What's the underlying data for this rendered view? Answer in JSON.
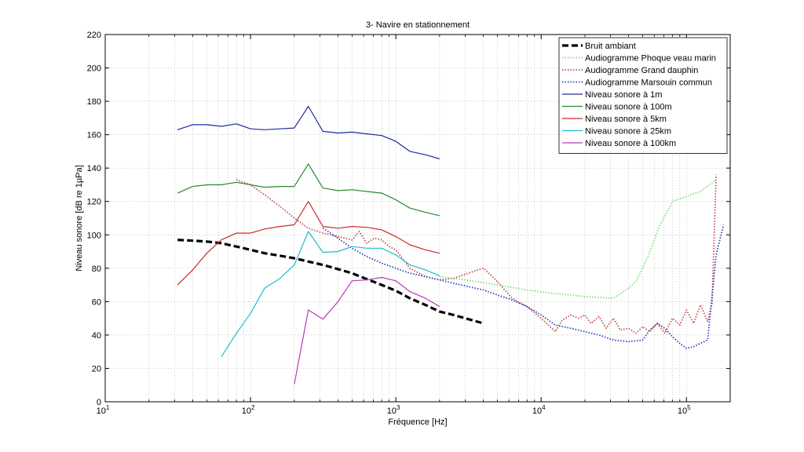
{
  "chart_data": {
    "type": "line",
    "title": "3- Navire en stationnement",
    "xlabel": "Fréquence [Hz]",
    "ylabel": "Niveau sonore [dB re 1µPa]",
    "xscale": "log",
    "xlim": [
      10,
      200000
    ],
    "ylim": [
      0,
      220
    ],
    "yticks": [
      0,
      20,
      40,
      60,
      80,
      100,
      120,
      140,
      160,
      180,
      200,
      220
    ],
    "xticks": [
      {
        "value": 10,
        "base": "10",
        "exp": "1"
      },
      {
        "value": 100,
        "base": "10",
        "exp": "2"
      },
      {
        "value": 1000,
        "base": "10",
        "exp": "3"
      },
      {
        "value": 10000,
        "base": "10",
        "exp": "4"
      },
      {
        "value": 100000,
        "base": "10",
        "exp": "5"
      }
    ],
    "grid": true,
    "legend_position": "top-right",
    "series": [
      {
        "name": "Bruit ambiant",
        "color": "#000000",
        "style": "dashed-bold",
        "x": [
          31.5,
          40,
          50,
          63,
          80,
          100,
          125,
          160,
          200,
          250,
          315,
          400,
          500,
          630,
          800,
          1000,
          1250,
          1600,
          2000,
          2500,
          3150,
          4000
        ],
        "y": [
          97,
          96.5,
          96,
          95,
          93,
          91,
          89,
          87.5,
          86,
          84,
          82,
          79.5,
          77,
          73.5,
          70,
          66.5,
          62,
          58,
          54,
          52,
          49.5,
          47
        ]
      },
      {
        "name": "Audiogramme Phoque veau marin",
        "color": "#7be07b",
        "style": "dotted",
        "x": [
          2000,
          3000,
          5000,
          8000,
          12000,
          16000,
          20000,
          25000,
          31500,
          40000,
          45000,
          55000,
          65000,
          80000,
          100000,
          125000,
          160000
        ],
        "y": [
          75,
          73,
          70,
          67,
          65,
          64,
          63,
          62.5,
          62,
          68,
          72,
          88,
          105,
          120,
          123,
          126,
          133
        ]
      },
      {
        "name": "Audiogramme Grand dauphin",
        "color": "#c0504d",
        "style": "dotted",
        "x": [
          80,
          100,
          125,
          160,
          200,
          250,
          315,
          400,
          450,
          500,
          560,
          630,
          710,
          800,
          900,
          1000,
          1250,
          1600,
          2000,
          2500,
          3150,
          4000,
          5000,
          6300,
          8000,
          10000,
          12500,
          14000,
          16000,
          18000,
          20000,
          22000,
          25000,
          28000,
          31500,
          35000,
          40000,
          45000,
          50000,
          56000,
          63000,
          71000,
          80000,
          90000,
          100000,
          112000,
          125000,
          140000,
          150000,
          160000
        ],
        "y": [
          133,
          130,
          124,
          117,
          110,
          104,
          101,
          99,
          98,
          97,
          102,
          95,
          98,
          97,
          93,
          91,
          80,
          75,
          73,
          74,
          77,
          80,
          72,
          62,
          57,
          50,
          42,
          49,
          52,
          50,
          52,
          47,
          51,
          44,
          50,
          43,
          44,
          41,
          45,
          42,
          47,
          41,
          50,
          46,
          55,
          47,
          58,
          48,
          59,
          136
        ]
      },
      {
        "name": "Audiogramme Marsouin commun",
        "color": "#2f3ec2",
        "style": "dotted",
        "x": [
          315,
          400,
          500,
          630,
          800,
          1000,
          1250,
          1600,
          2000,
          2500,
          3150,
          4000,
          5000,
          6300,
          8000,
          10000,
          12500,
          16000,
          20000,
          25000,
          31500,
          40000,
          50000,
          56000,
          63000,
          71000,
          80000,
          90000,
          100000,
          112000,
          125000,
          140000,
          160000,
          180000
        ],
        "y": [
          104,
          98,
          92,
          87,
          83,
          80,
          77,
          75,
          73,
          71,
          69,
          67,
          64,
          61,
          57,
          52,
          46,
          44,
          42,
          40,
          37,
          36,
          37,
          43,
          47,
          44,
          39,
          35,
          32,
          33,
          35,
          37,
          88,
          106
        ]
      },
      {
        "name": "Niveau sonore à 1m",
        "color": "#1c2c9c",
        "style": "solid",
        "x": [
          31.5,
          40,
          50,
          63,
          80,
          100,
          125,
          160,
          200,
          250,
          315,
          400,
          500,
          630,
          800,
          1000,
          1250,
          1600,
          2000
        ],
        "y": [
          163,
          166,
          166,
          165,
          166.5,
          163.5,
          163,
          163.5,
          164,
          177,
          162,
          161,
          161.5,
          160.5,
          159.5,
          156,
          150,
          148,
          145.5
        ]
      },
      {
        "name": "Niveau sonore à 100m",
        "color": "#2a8a2a",
        "style": "solid",
        "x": [
          31.5,
          40,
          50,
          63,
          80,
          100,
          125,
          160,
          200,
          250,
          315,
          400,
          500,
          630,
          800,
          1000,
          1250,
          1600,
          2000
        ],
        "y": [
          125,
          129,
          130,
          130,
          131.5,
          130,
          128.5,
          129,
          129,
          142.5,
          128,
          126.5,
          127,
          126,
          125,
          121,
          116,
          113.5,
          111.5
        ]
      },
      {
        "name": "Niveau sonore à 5km",
        "color": "#cc2a2a",
        "style": "solid",
        "x": [
          31.5,
          40,
          50,
          63,
          80,
          100,
          125,
          160,
          200,
          250,
          315,
          400,
          500,
          630,
          800,
          1000,
          1250,
          1600,
          2000
        ],
        "y": [
          70,
          79,
          89,
          97,
          101,
          101,
          103.5,
          105,
          106,
          120,
          105,
          104,
          105,
          104.5,
          103,
          99,
          94,
          91,
          89
        ]
      },
      {
        "name": "Niveau sonore à 25km",
        "color": "#20bcc8",
        "style": "solid",
        "x": [
          63,
          80,
          100,
          125,
          160,
          200,
          250,
          315,
          400,
          500,
          630,
          800,
          1000,
          1250,
          1600,
          2000
        ],
        "y": [
          27,
          41,
          53,
          68,
          74,
          82,
          102,
          89.5,
          90,
          93,
          92,
          92,
          88,
          82,
          79,
          75.5
        ]
      },
      {
        "name": "Niveau sonore à 100km",
        "color": "#b83ab8",
        "style": "solid",
        "x": [
          200,
          250,
          315,
          400,
          500,
          630,
          800,
          1000,
          1250,
          1600,
          2000
        ],
        "y": [
          10.5,
          55,
          49.5,
          60,
          72.5,
          73,
          74.5,
          72.5,
          66,
          62,
          57
        ]
      }
    ]
  }
}
